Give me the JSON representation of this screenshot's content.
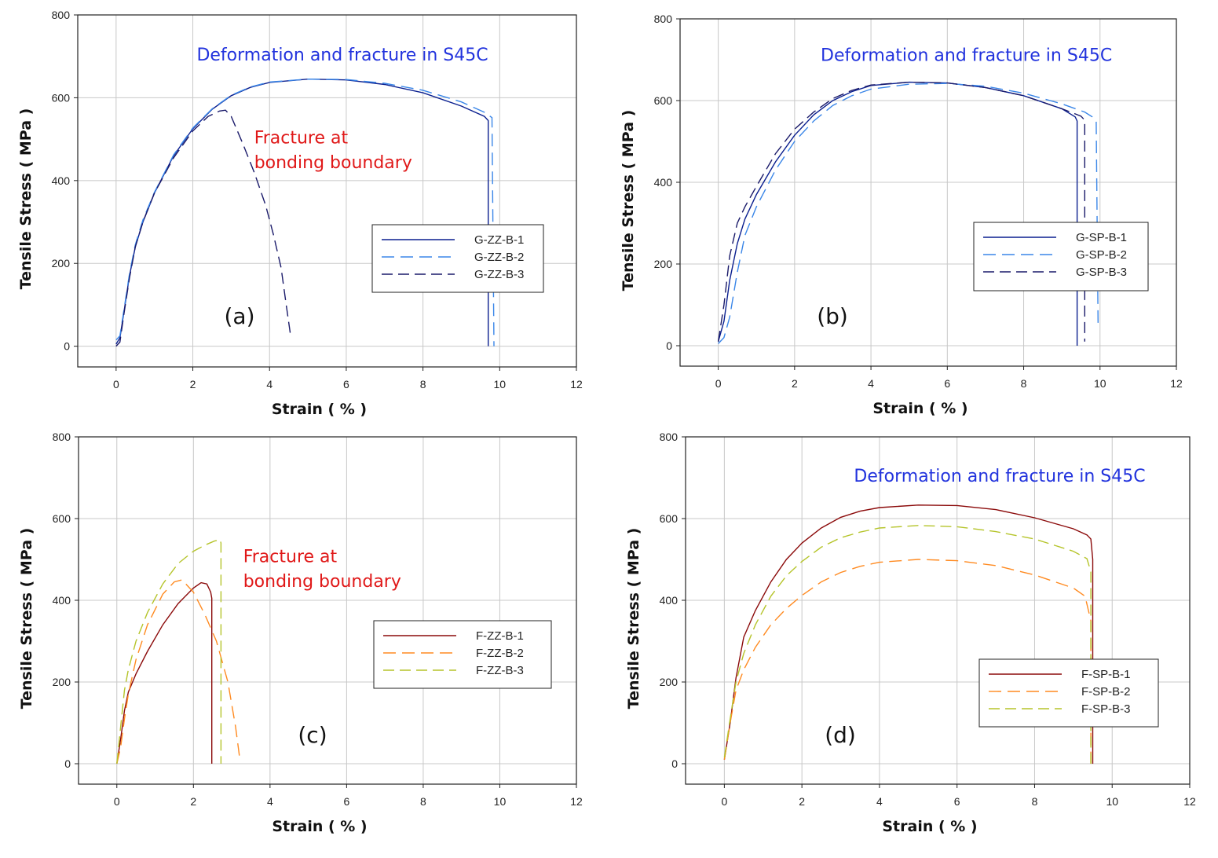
{
  "chart_data": [
    {
      "type": "line",
      "panel_label": "(a)",
      "xlabel": "Strain ( % )",
      "ylabel": "Tensile Stress ( MPa )",
      "xlim": [
        -1,
        12
      ],
      "ylim": [
        -50,
        800
      ],
      "xticks": [
        0,
        2,
        4,
        6,
        8,
        10,
        12
      ],
      "yticks": [
        0,
        200,
        400,
        600,
        800
      ],
      "grid": true,
      "legend_position": "center-right",
      "annotations": [
        {
          "text": "Deformation and fracture in S45C",
          "color": "#2233dd",
          "x": 5.9,
          "y": 690
        },
        {
          "text": "Fracture at",
          "color": "#e01818",
          "x": 3.6,
          "y": 490
        },
        {
          "text": "bonding boundary",
          "color": "#e01818",
          "x": 3.6,
          "y": 430
        }
      ],
      "series": [
        {
          "name": "G-ZZ-B-1",
          "color": "#0a1f8f",
          "dash": "",
          "x": [
            0,
            0.1,
            0.2,
            0.35,
            0.5,
            0.7,
            1.0,
            1.5,
            2.0,
            2.5,
            3.0,
            3.5,
            4.0,
            5.0,
            6.0,
            7.0,
            8.0,
            9.0,
            9.6,
            9.7,
            9.7
          ],
          "y": [
            5,
            20,
            80,
            170,
            240,
            300,
            370,
            460,
            525,
            572,
            605,
            625,
            637,
            645,
            643,
            632,
            612,
            580,
            555,
            545,
            0
          ]
        },
        {
          "name": "G-ZZ-B-2",
          "color": "#3a86e8",
          "dash": "16,8",
          "x": [
            0,
            0.1,
            0.2,
            0.35,
            0.5,
            0.7,
            1.0,
            1.5,
            2.0,
            2.5,
            3.0,
            3.5,
            4.0,
            5.0,
            6.0,
            7.0,
            8.0,
            9.0,
            9.6,
            9.8,
            9.85
          ],
          "y": [
            15,
            25,
            85,
            175,
            245,
            305,
            372,
            462,
            527,
            573,
            606,
            626,
            638,
            645,
            644,
            635,
            618,
            590,
            565,
            552,
            0
          ]
        },
        {
          "name": "G-ZZ-B-3",
          "color": "#1a1a6a",
          "dash": "14,7",
          "x": [
            0,
            0.1,
            0.2,
            0.35,
            0.5,
            0.7,
            1.0,
            1.5,
            2.0,
            2.4,
            2.7,
            2.85,
            3.0,
            3.3,
            3.6,
            3.9,
            4.1,
            4.3,
            4.45,
            4.55
          ],
          "y": [
            0,
            10,
            75,
            165,
            240,
            300,
            370,
            455,
            520,
            555,
            568,
            570,
            555,
            490,
            420,
            340,
            270,
            190,
            90,
            25
          ]
        }
      ]
    },
    {
      "type": "line",
      "panel_label": "(b)",
      "xlabel": "Strain ( % )",
      "ylabel": "Tensile Stress ( MPa )",
      "xlim": [
        -1,
        12
      ],
      "ylim": [
        -50,
        800
      ],
      "xticks": [
        0,
        2,
        4,
        6,
        8,
        10,
        12
      ],
      "yticks": [
        0,
        200,
        400,
        600,
        800
      ],
      "grid": true,
      "legend_position": "center-right",
      "annotations": [
        {
          "text": "Deformation and fracture in S45C",
          "color": "#2233dd",
          "x": 6.5,
          "y": 697
        }
      ],
      "series": [
        {
          "name": "G-SP-B-1",
          "color": "#0a1f8f",
          "dash": "",
          "x": [
            0,
            0.15,
            0.3,
            0.5,
            0.7,
            1.0,
            1.5,
            2.0,
            2.5,
            3.0,
            3.5,
            4.0,
            5.0,
            6.0,
            7.0,
            8.0,
            9.0,
            9.35,
            9.4,
            9.4
          ],
          "y": [
            10,
            60,
            160,
            250,
            310,
            370,
            450,
            515,
            565,
            600,
            622,
            637,
            645,
            643,
            632,
            612,
            580,
            560,
            550,
            0
          ]
        },
        {
          "name": "G-SP-B-2",
          "color": "#3a86e8",
          "dash": "16,8",
          "x": [
            0,
            0.15,
            0.3,
            0.5,
            0.7,
            1.0,
            1.5,
            2.0,
            2.5,
            3.0,
            3.5,
            4.0,
            5.0,
            6.0,
            7.0,
            8.0,
            9.0,
            9.6,
            9.8,
            9.9,
            9.95
          ],
          "y": [
            5,
            20,
            70,
            180,
            270,
            340,
            430,
            500,
            550,
            588,
            612,
            628,
            640,
            642,
            635,
            618,
            592,
            572,
            560,
            550,
            50
          ]
        },
        {
          "name": "G-SP-B-3",
          "color": "#1a1a6a",
          "dash": "14,7",
          "x": [
            0,
            0.15,
            0.3,
            0.5,
            0.7,
            1.0,
            1.5,
            2.0,
            2.5,
            3.0,
            3.5,
            4.0,
            5.0,
            6.0,
            7.0,
            8.0,
            9.0,
            9.5,
            9.6,
            9.6
          ],
          "y": [
            10,
            100,
            220,
            300,
            340,
            390,
            470,
            530,
            572,
            605,
            625,
            638,
            645,
            643,
            632,
            612,
            580,
            562,
            552,
            10
          ]
        }
      ]
    },
    {
      "type": "line",
      "panel_label": "(c)",
      "xlabel": "Strain ( % )",
      "ylabel": "Tensile Stress ( MPa )",
      "xlim": [
        -1,
        12
      ],
      "ylim": [
        -50,
        800
      ],
      "xticks": [
        0,
        2,
        4,
        6,
        8,
        10,
        12
      ],
      "yticks": [
        0,
        200,
        400,
        600,
        800
      ],
      "grid": true,
      "legend_position": "center-right",
      "annotations": [
        {
          "text": "Fracture at",
          "color": "#e01818",
          "x": 3.3,
          "y": 493
        },
        {
          "text": "bonding boundary",
          "color": "#e01818",
          "x": 3.3,
          "y": 433
        }
      ],
      "series": [
        {
          "name": "F-ZZ-B-1",
          "color": "#8b0a0a",
          "dash": "",
          "x": [
            0,
            0.1,
            0.2,
            0.3,
            0.5,
            0.8,
            1.2,
            1.6,
            2.0,
            2.2,
            2.35,
            2.45,
            2.48,
            2.48
          ],
          "y": [
            0,
            60,
            130,
            175,
            220,
            275,
            340,
            392,
            430,
            443,
            440,
            420,
            405,
            0
          ]
        },
        {
          "name": "F-ZZ-B-2",
          "color": "#ff8a20",
          "dash": "16,8",
          "x": [
            0,
            0.1,
            0.2,
            0.3,
            0.5,
            0.8,
            1.2,
            1.5,
            1.7,
            2.0,
            2.3,
            2.6,
            2.9,
            3.1,
            3.2
          ],
          "y": [
            0,
            40,
            110,
            170,
            255,
            340,
            415,
            445,
            450,
            420,
            365,
            300,
            200,
            90,
            20
          ]
        },
        {
          "name": "F-ZZ-B-3",
          "color": "#b5c42a",
          "dash": "14,7",
          "x": [
            0,
            0.1,
            0.2,
            0.3,
            0.5,
            0.8,
            1.2,
            1.6,
            2.0,
            2.3,
            2.55,
            2.7,
            2.72,
            2.72
          ],
          "y": [
            0,
            90,
            180,
            230,
            300,
            370,
            440,
            490,
            520,
            535,
            545,
            548,
            540,
            0
          ]
        }
      ]
    },
    {
      "type": "line",
      "panel_label": "(d)",
      "xlabel": "Strain ( % )",
      "ylabel": "Tensile Stress ( MPa )",
      "xlim": [
        -1,
        12
      ],
      "ylim": [
        -50,
        800
      ],
      "xticks": [
        0,
        2,
        4,
        6,
        8,
        10,
        12
      ],
      "yticks": [
        0,
        200,
        400,
        600,
        800
      ],
      "grid": true,
      "legend_position": "lower-right",
      "annotations": [
        {
          "text": "Deformation and fracture in S45C",
          "color": "#2233dd",
          "x": 7.1,
          "y": 690
        }
      ],
      "series": [
        {
          "name": "F-SP-B-1",
          "color": "#8b0a0a",
          "dash": "",
          "x": [
            0,
            0.15,
            0.3,
            0.5,
            0.8,
            1.2,
            1.6,
            2.0,
            2.5,
            3.0,
            3.5,
            4.0,
            5.0,
            6.0,
            7.0,
            8.0,
            9.0,
            9.35,
            9.45,
            9.5,
            9.5
          ],
          "y": [
            10,
            100,
            210,
            310,
            375,
            445,
            500,
            540,
            577,
            603,
            618,
            627,
            633,
            632,
            622,
            602,
            575,
            560,
            550,
            500,
            0
          ]
        },
        {
          "name": "F-SP-B-2",
          "color": "#ff8a20",
          "dash": "16,8",
          "x": [
            0,
            0.15,
            0.3,
            0.5,
            0.8,
            1.2,
            1.6,
            2.0,
            2.5,
            3.0,
            3.5,
            4.0,
            5.0,
            6.0,
            7.0,
            8.0,
            9.0,
            9.3,
            9.45,
            9.45
          ],
          "y": [
            10,
            100,
            180,
            230,
            285,
            340,
            380,
            412,
            445,
            468,
            483,
            493,
            500,
            497,
            485,
            462,
            430,
            410,
            350,
            0
          ]
        },
        {
          "name": "F-SP-B-3",
          "color": "#b5c42a",
          "dash": "14,7",
          "x": [
            0,
            0.15,
            0.3,
            0.5,
            0.8,
            1.2,
            1.6,
            2.0,
            2.5,
            3.0,
            3.5,
            4.0,
            5.0,
            6.0,
            7.0,
            8.0,
            9.0,
            9.35,
            9.45,
            9.45
          ],
          "y": [
            15,
            110,
            200,
            270,
            340,
            410,
            460,
            495,
            530,
            553,
            567,
            577,
            583,
            580,
            568,
            550,
            520,
            502,
            470,
            0
          ]
        }
      ]
    }
  ]
}
